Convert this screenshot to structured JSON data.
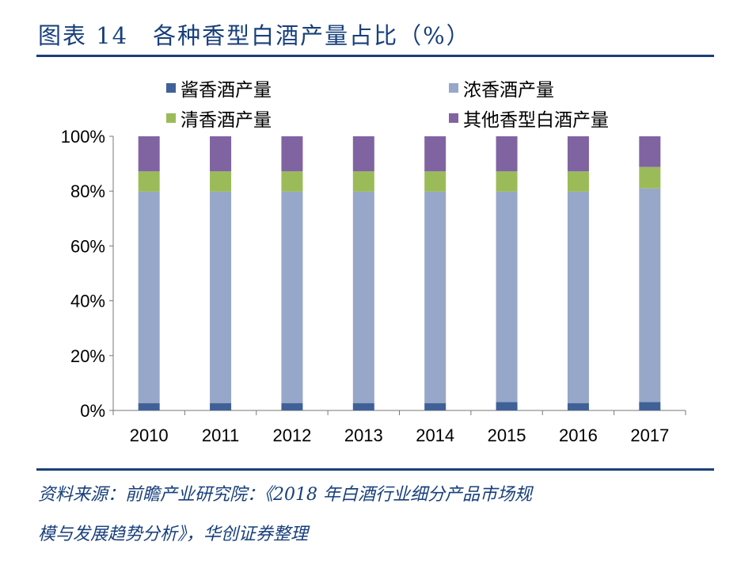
{
  "header": {
    "title": "图表 14　各种香型白酒产量占比（%）"
  },
  "source": {
    "line1": "资料来源：前瞻产业研究院：《2018 年白酒行业细分产品市场规",
    "line2": "模与发展趋势分析》，华创证券整理"
  },
  "chart_data": {
    "type": "bar",
    "stacked": true,
    "title": "各种香型白酒产量占比（%）",
    "categories": [
      "2010",
      "2011",
      "2012",
      "2013",
      "2014",
      "2015",
      "2016",
      "2017"
    ],
    "yticks": [
      "0%",
      "20%",
      "40%",
      "60%",
      "80%",
      "100%"
    ],
    "ylim": [
      0,
      100
    ],
    "legend_position": "top",
    "series": [
      {
        "name": "酱香酒产量",
        "color": "#3f6197",
        "values": [
          2.7,
          2.7,
          2.7,
          2.7,
          2.7,
          3.1,
          2.7,
          3.1
        ]
      },
      {
        "name": "浓香酒产量",
        "color": "#97a7c9",
        "values": [
          77.1,
          77.1,
          77.1,
          77.1,
          77.1,
          76.7,
          77.1,
          77.9
        ]
      },
      {
        "name": "清香酒产量",
        "color": "#9bbb59",
        "values": [
          7.4,
          7.4,
          7.4,
          7.4,
          7.4,
          7.4,
          7.4,
          7.8
        ]
      },
      {
        "name": "其他香型白酒产量",
        "color": "#8064a2",
        "values": [
          12.8,
          12.8,
          12.8,
          12.8,
          12.8,
          12.8,
          12.8,
          11.2
        ]
      }
    ]
  }
}
